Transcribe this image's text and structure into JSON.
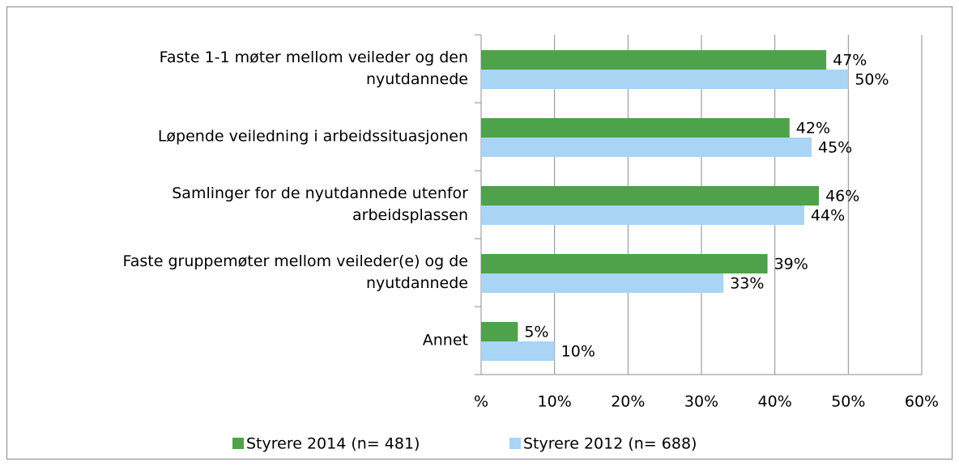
{
  "chart_data": {
    "type": "bar",
    "orientation": "horizontal",
    "categories": [
      [
        "Faste 1-1 møter mellom veileder og den",
        "nyutdannede"
      ],
      [
        "Løpende veiledning i arbeidssituasjonen"
      ],
      [
        "Samlinger for de nyutdannede utenfor",
        "arbeidsplassen"
      ],
      [
        "Faste gruppemøter mellom veileder(e) og de",
        "nyutdannede"
      ],
      [
        "Annet"
      ]
    ],
    "series": [
      {
        "name": "Styrere 2014 (n= 481)",
        "color": "#4ea24a",
        "values": [
          47,
          42,
          46,
          39,
          5
        ],
        "value_labels": [
          "47%",
          "42%",
          "46%",
          "39%",
          "5%"
        ]
      },
      {
        "name": "Styrere 2012 (n= 688)",
        "color": "#a9d4f3",
        "values": [
          50,
          45,
          44,
          33,
          10
        ],
        "value_labels": [
          "50%",
          "45%",
          "44%",
          "33%",
          "10%"
        ]
      }
    ],
    "xlim": [
      0,
      60
    ],
    "xticks": [
      {
        "value": 0,
        "label": "%"
      },
      {
        "value": 10,
        "label": "10%"
      },
      {
        "value": 20,
        "label": "20%"
      },
      {
        "value": 30,
        "label": "30%"
      },
      {
        "value": 40,
        "label": "40%"
      },
      {
        "value": 50,
        "label": "50%"
      },
      {
        "value": 60,
        "label": "60%"
      }
    ],
    "grid": true,
    "legend": "bottom"
  }
}
